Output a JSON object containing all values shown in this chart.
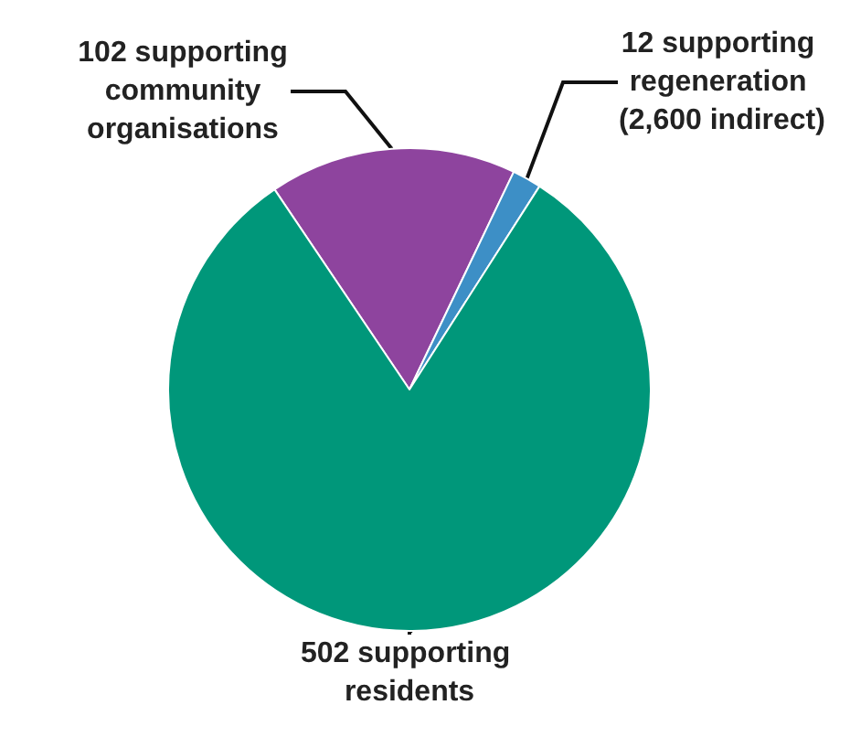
{
  "chart_data": {
    "type": "pie",
    "categories": [
      null,
      null,
      null
    ],
    "value_labels": [
      "102 supporting community organisations",
      "12 supporting regeneration (2,600 indirect)",
      "502 supporting residents"
    ],
    "values": [
      102,
      12,
      502
    ],
    "colors": [
      "#8e449e",
      "#3d8fc6",
      "#00977a"
    ]
  }
}
